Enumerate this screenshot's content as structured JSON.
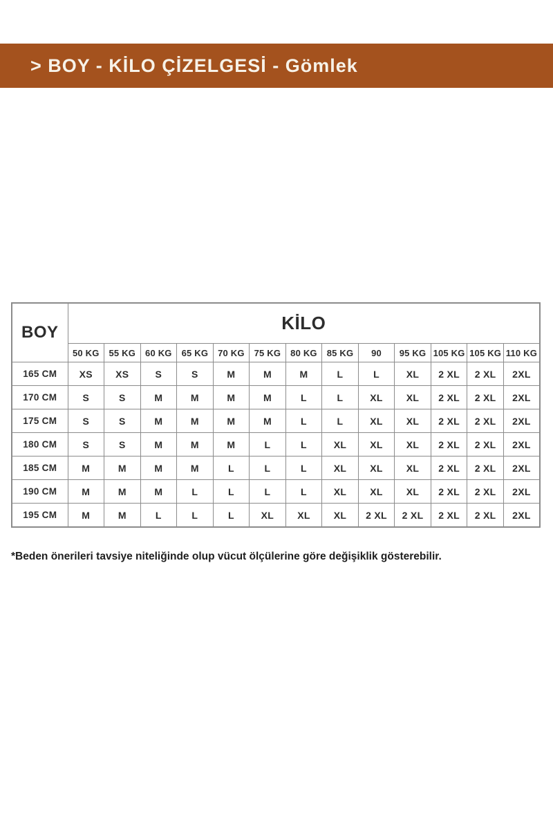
{
  "header": {
    "title": "> BOY - KİLO ÇİZELGESİ - Gömlek"
  },
  "colors": {
    "title_bar_background": "#a4521e",
    "title_bar_text": "#f7f2e8",
    "table_border": "#8b8b8b",
    "table_text": "#2d2d2d"
  },
  "chart_data": {
    "type": "table",
    "title": "> BOY - KİLO ÇİZELGESİ - Gömlek",
    "row_axis_label": "BOY",
    "column_group_label": "KİLO",
    "columns": [
      "50 KG",
      "55 KG",
      "60 KG",
      "65 KG",
      "70 KG",
      "75 KG",
      "80 KG",
      "85 KG",
      "90",
      "95 KG",
      "105 KG",
      "105 KG",
      "110 KG"
    ],
    "rows": [
      {
        "height": "165 CM",
        "sizes": [
          "XS",
          "XS",
          "S",
          "S",
          "M",
          "M",
          "M",
          "L",
          "L",
          "XL",
          "2 XL",
          "2 XL",
          "2XL"
        ]
      },
      {
        "height": "170 CM",
        "sizes": [
          "S",
          "S",
          "M",
          "M",
          "M",
          "M",
          "L",
          "L",
          "XL",
          "XL",
          "2 XL",
          "2 XL",
          "2XL"
        ]
      },
      {
        "height": "175 CM",
        "sizes": [
          "S",
          "S",
          "M",
          "M",
          "M",
          "M",
          "L",
          "L",
          "XL",
          "XL",
          "2 XL",
          "2 XL",
          "2XL"
        ]
      },
      {
        "height": "180 CM",
        "sizes": [
          "S",
          "S",
          "M",
          "M",
          "M",
          "L",
          "L",
          "XL",
          "XL",
          "XL",
          "2 XL",
          "2 XL",
          "2XL"
        ]
      },
      {
        "height": "185 CM",
        "sizes": [
          "M",
          "M",
          "M",
          "M",
          "L",
          "L",
          "L",
          "XL",
          "XL",
          "XL",
          "2 XL",
          "2 XL",
          "2XL"
        ]
      },
      {
        "height": "190 CM",
        "sizes": [
          "M",
          "M",
          "M",
          "L",
          "L",
          "L",
          "L",
          "XL",
          "XL",
          "XL",
          "2 XL",
          "2 XL",
          "2XL"
        ]
      },
      {
        "height": "195 CM",
        "sizes": [
          "M",
          "M",
          "L",
          "L",
          "L",
          "XL",
          "XL",
          "XL",
          "2 XL",
          "2 XL",
          "2 XL",
          "2 XL",
          "2XL"
        ]
      }
    ],
    "footnote": "*Beden önerileri tavsiye niteliğinde olup vücut ölçülerine göre değişiklik gösterebilir."
  }
}
